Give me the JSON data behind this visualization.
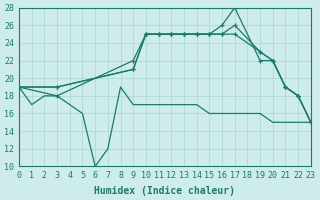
{
  "xlabel": "Humidex (Indice chaleur)",
  "xlim": [
    0,
    23
  ],
  "ylim": [
    10,
    28
  ],
  "yticks": [
    10,
    12,
    14,
    16,
    18,
    20,
    22,
    24,
    26,
    28
  ],
  "xticks": [
    0,
    1,
    2,
    3,
    4,
    5,
    6,
    7,
    8,
    9,
    10,
    11,
    12,
    13,
    14,
    15,
    16,
    17,
    18,
    19,
    20,
    21,
    22,
    23
  ],
  "background_color": "#ceecea",
  "grid_color": "#aed8d4",
  "line_color": "#1a7a6e",
  "line_bottom": {
    "x": [
      0,
      1,
      2,
      3,
      4,
      5,
      6,
      7,
      8,
      9,
      10,
      11,
      12,
      13,
      14,
      15,
      16,
      17,
      18,
      19,
      20,
      21,
      22,
      23
    ],
    "y": [
      19,
      17,
      18,
      18,
      17,
      16,
      10,
      12,
      19,
      17,
      17,
      17,
      17,
      17,
      17,
      16,
      16,
      16,
      16,
      16,
      15,
      15,
      15,
      15
    ]
  },
  "line1": {
    "x": [
      0,
      3,
      9,
      10,
      11,
      12,
      13,
      14,
      15,
      16,
      17,
      19,
      20,
      21,
      22,
      23
    ],
    "y": [
      19,
      18,
      22,
      25,
      25,
      25,
      25,
      25,
      25,
      26,
      28,
      22,
      22,
      19,
      18,
      15
    ]
  },
  "line2": {
    "x": [
      0,
      3,
      9,
      10,
      11,
      12,
      13,
      14,
      15,
      16,
      17,
      19,
      20,
      21,
      22,
      23
    ],
    "y": [
      19,
      19,
      21,
      25,
      25,
      25,
      25,
      25,
      25,
      25,
      26,
      23,
      22,
      19,
      18,
      15
    ]
  },
  "line3": {
    "x": [
      0,
      3,
      9,
      10,
      11,
      12,
      13,
      14,
      15,
      16,
      17,
      19,
      20,
      21,
      22,
      23
    ],
    "y": [
      19,
      19,
      21,
      25,
      25,
      25,
      25,
      25,
      25,
      25,
      25,
      23,
      22,
      19,
      18,
      15
    ]
  },
  "label_fontsize": 7,
  "tick_fontsize": 6
}
